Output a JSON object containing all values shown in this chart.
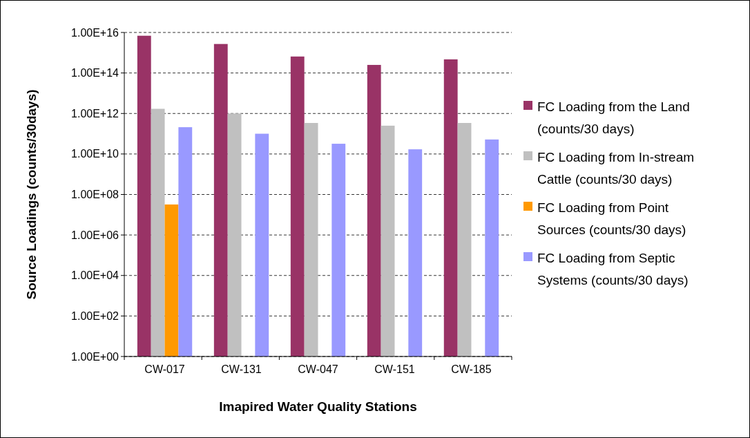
{
  "chart_data": {
    "type": "bar",
    "xlabel": "Imapired Water Quality Stations",
    "ylabel": "Source Loadings (counts/30days)",
    "categories": [
      "CW-017",
      "CW-131",
      "CW-047",
      "CW-151",
      "CW-185"
    ],
    "series": [
      {
        "name": "FC Loading from the Land (counts/30 days)",
        "color": "#993366",
        "values": [
          6900000000000000.0,
          2700000000000000.0,
          650000000000000.0,
          250000000000000.0,
          470000000000000.0
        ]
      },
      {
        "name": "FC Loading from In-stream Cattle (counts/30 days)",
        "color": "#c0c0c0",
        "values": [
          1700000000000.0,
          1000000000000.0,
          340000000000.0,
          250000000000.0,
          340000000000.0
        ]
      },
      {
        "name": "FC Loading from Point Sources (counts/30 days)",
        "color": "#ff9900",
        "values": [
          32000000.0,
          null,
          null,
          null,
          null
        ]
      },
      {
        "name": "FC Loading from Septic Systems (counts/30 days)",
        "color": "#9999ff",
        "values": [
          210000000000.0,
          100000000000.0,
          32000000000.0,
          17000000000.0,
          52000000000.0
        ]
      }
    ],
    "log": true,
    "ylim": [
      1,
      1e+16
    ],
    "yticks": [
      {
        "value": 1,
        "label": "1.00E+00"
      },
      {
        "value": 100,
        "label": "1.00E+02"
      },
      {
        "value": 10000,
        "label": "1.00E+04"
      },
      {
        "value": 1000000,
        "label": "1.00E+06"
      },
      {
        "value": 100000000,
        "label": "1.00E+08"
      },
      {
        "value": 10000000000,
        "label": "1.00E+10"
      },
      {
        "value": 1000000000000,
        "label": "1.00E+12"
      },
      {
        "value": 100000000000000,
        "label": "1.00E+14"
      },
      {
        "value": 10000000000000000,
        "label": "1.00E+16"
      }
    ],
    "grid": "y",
    "legend": "right"
  }
}
